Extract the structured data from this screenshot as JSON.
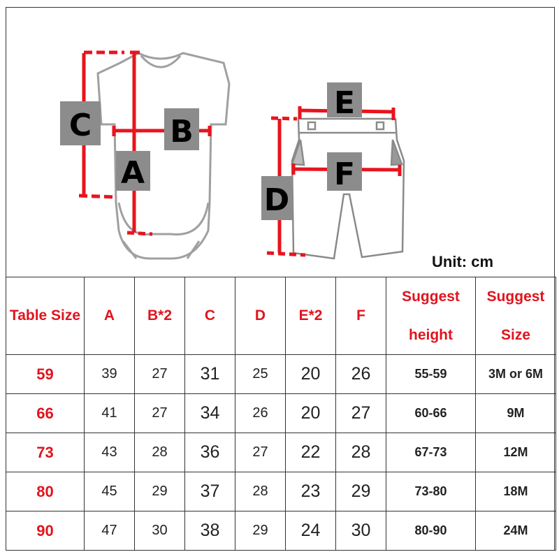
{
  "diagram": {
    "bodysuit_labels": [
      "C",
      "B",
      "A"
    ],
    "shorts_labels": [
      "E",
      "F",
      "D"
    ],
    "unit": "Unit: cm",
    "colors": {
      "measure_line": "#e8141e",
      "label_box": "#8c8c8c",
      "outline": "#a0a0a0"
    }
  },
  "table": {
    "headers": [
      "Table Size",
      "A",
      "B*2",
      "C",
      "D",
      "E*2",
      "F",
      [
        "Suggest",
        "height"
      ],
      [
        "Suggest",
        "Size"
      ]
    ],
    "rows": [
      [
        "59",
        "39",
        "27",
        "31",
        "25",
        "20",
        "26",
        "55-59",
        "3M or 6M"
      ],
      [
        "66",
        "41",
        "27",
        "34",
        "26",
        "20",
        "27",
        "60-66",
        "9M"
      ],
      [
        "73",
        "43",
        "28",
        "36",
        "27",
        "22",
        "28",
        "67-73",
        "12M"
      ],
      [
        "80",
        "45",
        "29",
        "37",
        "28",
        "23",
        "29",
        "73-80",
        "18M"
      ],
      [
        "90",
        "47",
        "30",
        "38",
        "29",
        "24",
        "30",
        "80-90",
        "24M"
      ]
    ],
    "header_color": "#e0141e"
  }
}
